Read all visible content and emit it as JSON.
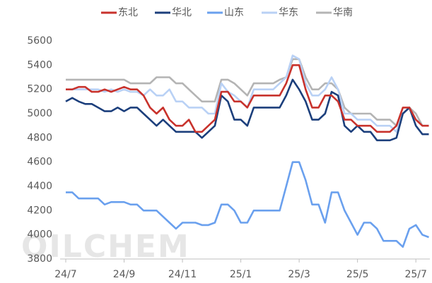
{
  "chart_data": {
    "type": "line",
    "watermark": "OILCHEM",
    "categories": [
      "24/7",
      null,
      null,
      null,
      null,
      null,
      null,
      null,
      null,
      "24/9",
      null,
      null,
      null,
      null,
      null,
      null,
      null,
      null,
      "24/11",
      null,
      null,
      null,
      null,
      null,
      null,
      null,
      null,
      "25/1",
      null,
      null,
      null,
      null,
      null,
      null,
      null,
      null,
      "25/3",
      null,
      null,
      null,
      null,
      null,
      null,
      null,
      null,
      "25/5",
      null,
      null,
      null,
      null,
      null,
      null,
      null,
      null,
      "25/7",
      null,
      null
    ],
    "series": [
      {
        "name": "东北",
        "color": "#c8322c",
        "values": [
          5200,
          5200,
          5220,
          5220,
          5180,
          5180,
          5200,
          5180,
          5200,
          5220,
          5200,
          5200,
          5150,
          5050,
          5000,
          5050,
          4950,
          4900,
          4900,
          4950,
          4850,
          4850,
          4900,
          4950,
          5180,
          5180,
          5100,
          5100,
          5050,
          5150,
          5150,
          5150,
          5150,
          5150,
          5250,
          5400,
          5400,
          5200,
          5050,
          5050,
          5150,
          5150,
          5100,
          4950,
          4950,
          4900,
          4900,
          4900,
          4850,
          4850,
          4850,
          4900,
          5050,
          5050,
          4950,
          4900,
          4900
        ]
      },
      {
        "name": "华北",
        "color": "#1c3f7c",
        "values": [
          5100,
          5130,
          5100,
          5080,
          5080,
          5050,
          5020,
          5020,
          5050,
          5020,
          5050,
          5050,
          5000,
          4950,
          4900,
          4950,
          4900,
          4850,
          4850,
          4850,
          4850,
          4800,
          4850,
          4900,
          5150,
          5100,
          4950,
          4950,
          4900,
          5050,
          5050,
          5050,
          5050,
          5050,
          5150,
          5280,
          5200,
          5100,
          4950,
          4950,
          5000,
          5180,
          5150,
          4900,
          4850,
          4900,
          4850,
          4850,
          4780,
          4780,
          4780,
          4800,
          5000,
          5050,
          4900,
          4830,
          4830
        ]
      },
      {
        "name": "山东",
        "color": "#6aa0ee",
        "values": [
          4350,
          4350,
          4300,
          4300,
          4300,
          4300,
          4250,
          4270,
          4270,
          4270,
          4250,
          4250,
          4200,
          4200,
          4200,
          4150,
          4100,
          4050,
          4100,
          4100,
          4100,
          4080,
          4080,
          4100,
          4250,
          4250,
          4200,
          4100,
          4100,
          4200,
          4200,
          4200,
          4200,
          4200,
          4400,
          4600,
          4600,
          4450,
          4250,
          4250,
          4100,
          4350,
          4350,
          4200,
          4100,
          4000,
          4100,
          4100,
          4050,
          3950,
          3950,
          3950,
          3900,
          4050,
          4080,
          4000,
          3980
        ]
      },
      {
        "name": "华东",
        "color": "#b9d1f5",
        "values": [
          5200,
          5200,
          5200,
          5200,
          5200,
          5200,
          5180,
          5200,
          5180,
          5200,
          5180,
          5180,
          5150,
          5200,
          5150,
          5150,
          5200,
          5100,
          5100,
          5050,
          5050,
          5050,
          5000,
          5000,
          5250,
          5180,
          5150,
          5100,
          5050,
          5200,
          5200,
          5200,
          5200,
          5250,
          5300,
          5480,
          5450,
          5250,
          5150,
          5150,
          5200,
          5300,
          5200,
          5000,
          5000,
          4950,
          4950,
          4950,
          4900,
          4900,
          4900,
          4850,
          5000,
          5050,
          4950,
          4900,
          4900
        ]
      },
      {
        "name": "华南",
        "color": "#b4b4b4",
        "values": [
          5280,
          5280,
          5280,
          5280,
          5280,
          5280,
          5280,
          5280,
          5280,
          5280,
          5250,
          5250,
          5250,
          5250,
          5300,
          5300,
          5300,
          5250,
          5250,
          5200,
          5150,
          5100,
          5100,
          5100,
          5280,
          5280,
          5250,
          5200,
          5150,
          5250,
          5250,
          5250,
          5250,
          5280,
          5300,
          5450,
          5450,
          5300,
          5200,
          5200,
          5250,
          5250,
          5200,
          5050,
          5000,
          5000,
          5000,
          5000,
          4950,
          4950,
          4950,
          4900,
          5000,
          5050,
          5000,
          4900,
          4900
        ]
      }
    ],
    "ylim": [
      3800,
      5600
    ],
    "yticks": [
      3800,
      4000,
      4200,
      4400,
      4600,
      4800,
      5000,
      5200,
      5400,
      5600
    ],
    "grid": false,
    "legend": "top"
  }
}
